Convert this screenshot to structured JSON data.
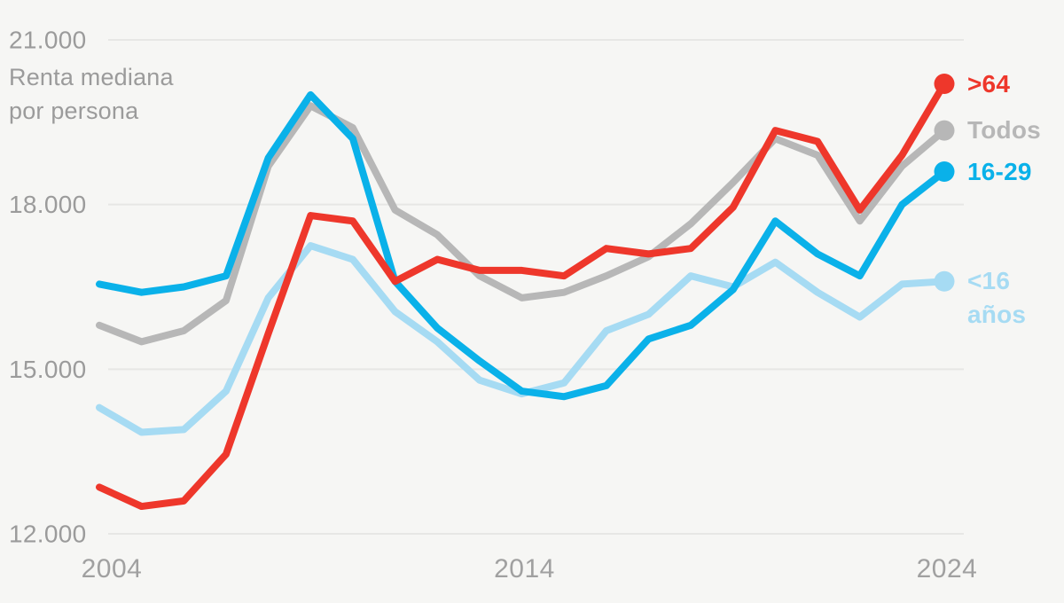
{
  "chart_data": {
    "type": "line",
    "title": "Renta mediana por persona",
    "title_lines": [
      "Renta mediana",
      "por persona"
    ],
    "x": [
      2004,
      2005,
      2006,
      2007,
      2008,
      2009,
      2010,
      2011,
      2012,
      2013,
      2014,
      2015,
      2016,
      2017,
      2018,
      2019,
      2020,
      2021,
      2022,
      2023,
      2024
    ],
    "x_ticks": [
      2004,
      2014,
      2024
    ],
    "x_tick_labels": [
      "2004",
      "2014",
      "2024"
    ],
    "y_ticks": [
      21000,
      18000,
      15000,
      12000
    ],
    "y_tick_labels": [
      "21.000",
      "18.000",
      "15.000",
      "12.000"
    ],
    "ylim": [
      12000,
      21000
    ],
    "xlim": [
      2004,
      2024
    ],
    "grid": "horizontal",
    "legend_position": "right-of-line-ends",
    "series": [
      {
        "name": "<16 años",
        "label": "<16\naños",
        "color": "#a6dbf3",
        "values": [
          14300,
          13850,
          13900,
          14600,
          16300,
          17250,
          17000,
          16050,
          15500,
          14800,
          14550,
          14750,
          15700,
          16000,
          16700,
          16500,
          16950,
          16400,
          15950,
          16550,
          16600
        ]
      },
      {
        "name": "Todos",
        "label": "Todos",
        "color": "#b7b7b7",
        "values": [
          15800,
          15500,
          15700,
          16250,
          18700,
          19800,
          19400,
          17900,
          17450,
          16700,
          16300,
          16400,
          16700,
          17050,
          17650,
          18400,
          19200,
          18900,
          17700,
          18700,
          19350
        ]
      },
      {
        "name": "16-29",
        "label": "16-29",
        "color": "#0ab1e9",
        "values": [
          16550,
          16400,
          16500,
          16700,
          18850,
          20000,
          19200,
          16600,
          15750,
          15150,
          14600,
          14500,
          14700,
          15550,
          15800,
          16450,
          17700,
          17100,
          16700,
          18000,
          18600
        ]
      },
      {
        "name": ">64",
        "label": ">64",
        "color": "#ee372b",
        "values": [
          12850,
          12500,
          12600,
          13450,
          15650,
          17800,
          17700,
          16600,
          17000,
          16800,
          16800,
          16700,
          17200,
          17100,
          17200,
          17950,
          19350,
          19150,
          17900,
          18900,
          20200
        ]
      }
    ],
    "colors": {
      "background": "#f6f6f4",
      "grid": "#e7e7e5",
      "axis_text": "#9b9b9b"
    }
  }
}
